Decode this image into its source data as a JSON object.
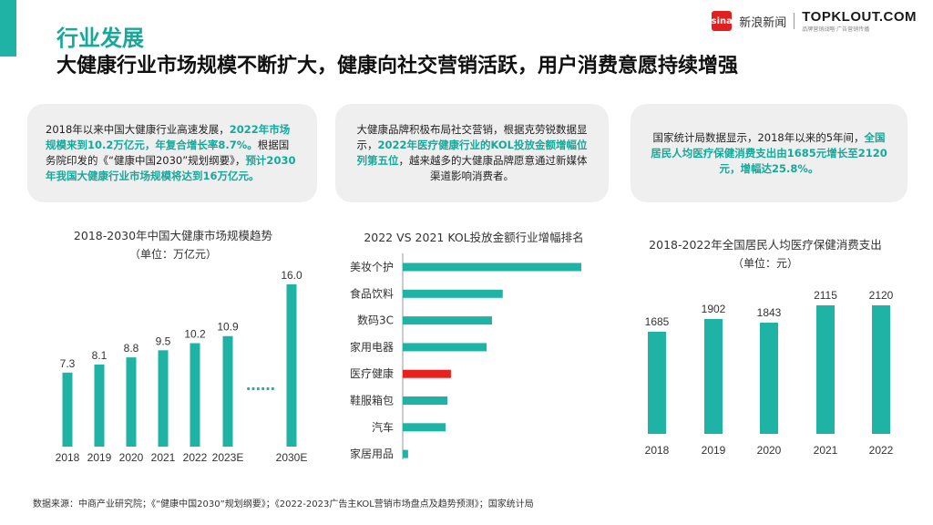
{
  "header": {
    "category": "行业发展",
    "headline": "大健康行业市场规模不断扩大，健康向社交营销活跃，用户消费意愿持续增强",
    "sina_logo": "sina",
    "sina_label": "新浪新闻",
    "brand": "TOPKLOUT.COM",
    "brand_sub": "品牌营销战略·广告营销传播",
    "accent_color": "#1fb3a6",
    "highlight_color": "#e8211e"
  },
  "cards": [
    {
      "segments": [
        {
          "t": "2018年以来中国大健康行业高速发展，",
          "h": false
        },
        {
          "t": "2022年市场规模来到10.2万亿元，年复合增长率8.7%。",
          "h": true
        },
        {
          "t": "根据国务院印发的《“健康中国2030”规划纲要》，",
          "h": false
        },
        {
          "t": "预计2030年我国大健康行业市场规模将达到16万亿元。",
          "h": true
        }
      ]
    },
    {
      "segments": [
        {
          "t": "大健康品牌积极布局社交营销，根据克劳锐数据显示，",
          "h": false
        },
        {
          "t": "2022年医疗健康行业的KOL投放金额增幅位列第五位",
          "h": true
        },
        {
          "t": "，越来越多的大健康品牌愿意通过新媒体渠道影响消费者。",
          "h": false
        }
      ]
    },
    {
      "segments": [
        {
          "t": "国家统计局数据显示，2018年以来的5年间，",
          "h": false
        },
        {
          "t": "全国居民人均医疗保健消费支出由1685元增长至2120元，增幅达25.8%。",
          "h": true
        }
      ]
    }
  ],
  "chart_data": [
    {
      "type": "bar",
      "title": "2018-2030年中国大健康市场规模趋势",
      "unit": "（单位：万亿元）",
      "categories": [
        "2018",
        "2019",
        "2020",
        "2021",
        "2022",
        "2023E",
        "2030E"
      ],
      "values": [
        7.3,
        8.1,
        8.8,
        9.5,
        10.2,
        10.9,
        16.0
      ],
      "value_labels": [
        "7.3",
        "8.1",
        "8.8",
        "9.5",
        "10.2",
        "10.9",
        "16.0"
      ],
      "gap_marker": "……",
      "ylim": [
        0,
        16
      ],
      "grid": false,
      "color": "#1fb3a6"
    },
    {
      "type": "bar",
      "orientation": "horizontal",
      "title": "2022 VS 2021 KOL投放金额行业增幅排名",
      "categories": [
        "美妆个护",
        "食品饮料",
        "数码3C",
        "家用电器",
        "医疗健康",
        "鞋服箱包",
        "汽车",
        "家居用品"
      ],
      "values": [
        100,
        56,
        50,
        47,
        27,
        25,
        24,
        3
      ],
      "highlight_index": 4,
      "grid": false,
      "color": "#1fb3a6",
      "highlight_color": "#e8211e"
    },
    {
      "type": "bar",
      "title": "2018-2022年全国居民人均医疗保健消费支出",
      "unit": "（单位：元）",
      "categories": [
        "2018",
        "2019",
        "2020",
        "2021",
        "2022"
      ],
      "values": [
        1685,
        1902,
        1843,
        2115,
        2120
      ],
      "ylim": [
        0,
        2120
      ],
      "grid": false,
      "color": "#1fb3a6"
    }
  ],
  "footer": {
    "source": "数据来源：中商产业研究院；《“健康中国2030”规划纲要》；《2022-2023广告主KOL营销市场盘点及趋势预测》；国家统计局"
  }
}
